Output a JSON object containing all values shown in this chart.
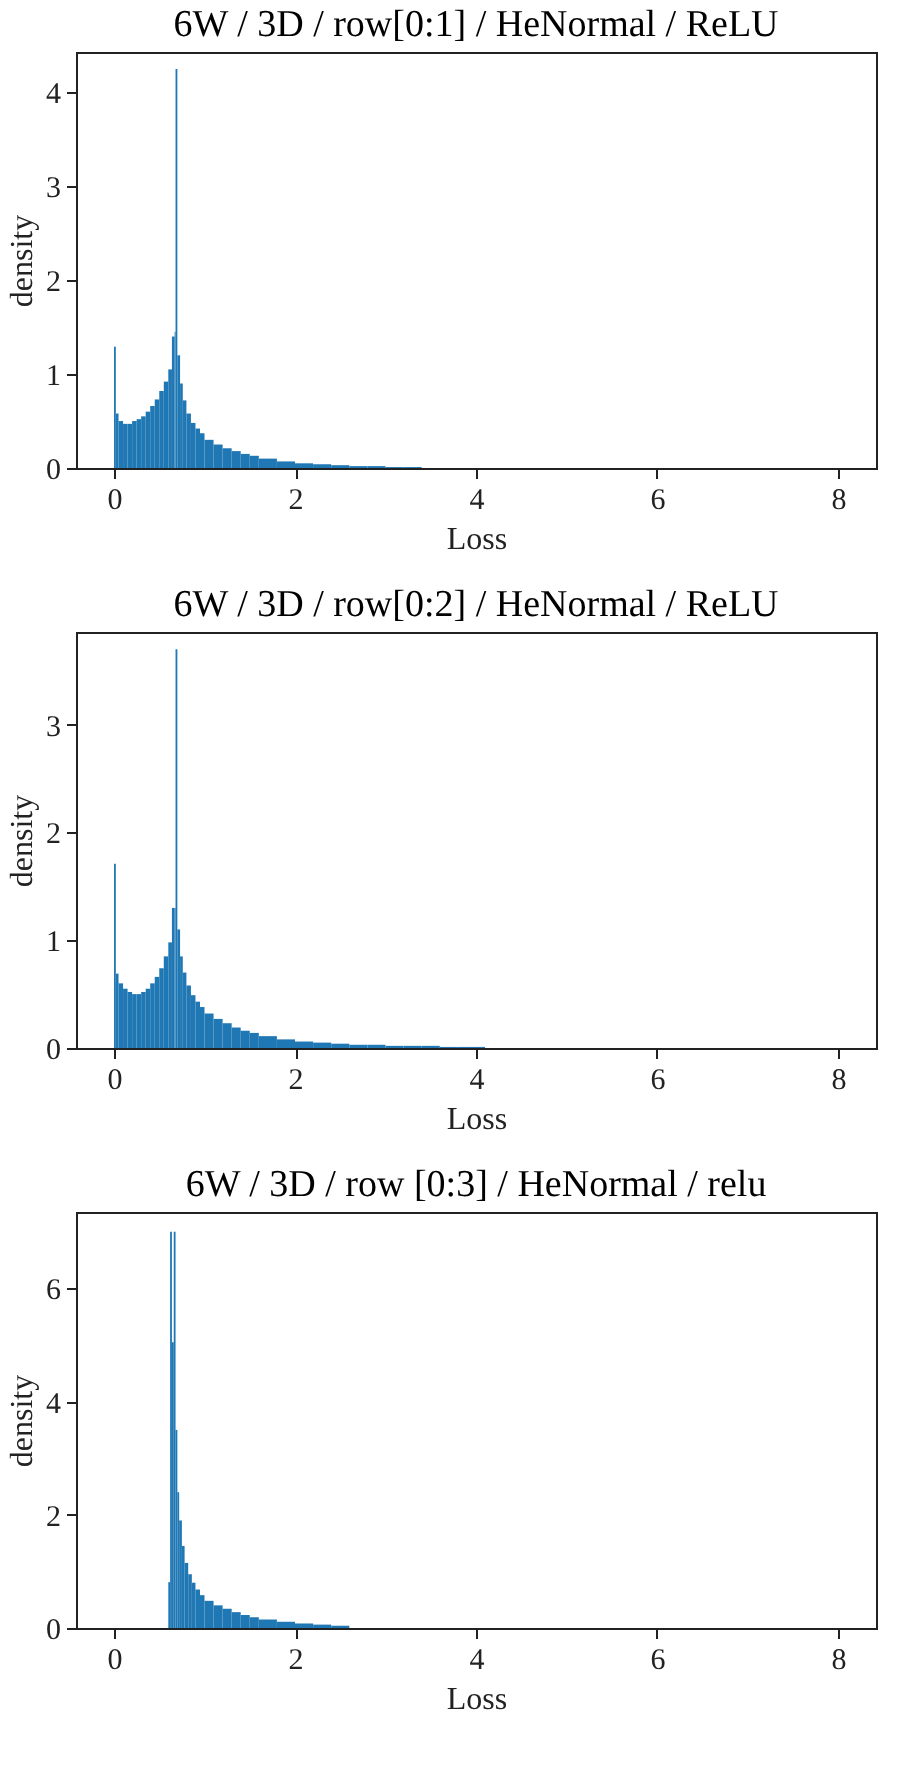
{
  "chart_data": [
    {
      "type": "histogram",
      "title": "6W / 3D / row[0:1] / HeNormal / ReLU",
      "xlabel": "Loss",
      "ylabel": "density",
      "color": "#1f77b4",
      "bins": [
        0,
        0.02,
        0.05,
        0.1,
        0.15,
        0.2,
        0.25,
        0.3,
        0.35,
        0.4,
        0.45,
        0.5,
        0.55,
        0.6,
        0.64,
        0.67,
        0.68,
        0.7,
        0.73,
        0.76,
        0.8,
        0.85,
        0.9,
        0.95,
        1.0,
        1.1,
        1.2,
        1.3,
        1.4,
        1.5,
        1.6,
        1.8,
        2.0,
        2.2,
        2.4,
        2.6,
        2.8,
        3.0,
        3.2,
        3.4
      ],
      "values": [
        1.29,
        0.58,
        0.5,
        0.47,
        0.47,
        0.5,
        0.52,
        0.55,
        0.6,
        0.66,
        0.73,
        0.82,
        0.92,
        1.05,
        1.4,
        1.45,
        4.25,
        1.2,
        0.9,
        0.72,
        0.58,
        0.48,
        0.42,
        0.37,
        0.3,
        0.25,
        0.21,
        0.18,
        0.15,
        0.13,
        0.1,
        0.07,
        0.05,
        0.04,
        0.03,
        0.02,
        0.02,
        0.01,
        0.01
      ],
      "xlim": [
        -0.42,
        8.42
      ],
      "ylim": [
        0,
        4.43
      ],
      "xticks": [
        0,
        2,
        4,
        6,
        8
      ],
      "yticks": [
        0,
        1,
        2,
        3,
        4
      ]
    },
    {
      "type": "histogram",
      "title": "6W / 3D / row[0:2] / HeNormal / ReLU",
      "xlabel": "Loss",
      "ylabel": "density",
      "color": "#1f77b4",
      "bins": [
        0,
        0.02,
        0.05,
        0.1,
        0.15,
        0.2,
        0.25,
        0.3,
        0.35,
        0.4,
        0.45,
        0.5,
        0.55,
        0.6,
        0.64,
        0.67,
        0.68,
        0.7,
        0.73,
        0.76,
        0.8,
        0.85,
        0.9,
        0.95,
        1.0,
        1.1,
        1.2,
        1.3,
        1.4,
        1.5,
        1.6,
        1.8,
        2.0,
        2.2,
        2.4,
        2.6,
        2.8,
        3.0,
        3.2,
        3.4,
        3.6,
        3.8,
        4.1
      ],
      "values": [
        1.71,
        0.69,
        0.6,
        0.55,
        0.52,
        0.5,
        0.5,
        0.52,
        0.55,
        0.6,
        0.66,
        0.74,
        0.85,
        0.98,
        1.3,
        1.3,
        3.7,
        1.1,
        0.85,
        0.7,
        0.58,
        0.49,
        0.43,
        0.38,
        0.32,
        0.27,
        0.23,
        0.19,
        0.16,
        0.14,
        0.11,
        0.08,
        0.06,
        0.05,
        0.04,
        0.03,
        0.03,
        0.02,
        0.02,
        0.02,
        0.01,
        0.01
      ],
      "xlim": [
        -0.42,
        8.42
      ],
      "ylim": [
        0,
        3.86
      ],
      "xticks": [
        0,
        2,
        4,
        6,
        8
      ],
      "yticks": [
        0,
        1,
        2,
        3
      ]
    },
    {
      "type": "histogram",
      "title": "6W / 3D / row [0:3] / HeNormal / relu",
      "xlabel": "Loss",
      "ylabel": "density",
      "color": "#1f77b4",
      "bins": [
        0.6,
        0.62,
        0.64,
        0.66,
        0.68,
        0.7,
        0.72,
        0.75,
        0.78,
        0.82,
        0.86,
        0.9,
        0.95,
        1.0,
        1.1,
        1.2,
        1.3,
        1.4,
        1.5,
        1.6,
        1.8,
        2.0,
        2.2,
        2.4,
        2.6
      ],
      "values": [
        0.81,
        7.0,
        5.05,
        7.0,
        3.5,
        2.4,
        1.9,
        1.45,
        1.15,
        0.95,
        0.8,
        0.68,
        0.58,
        0.48,
        0.4,
        0.34,
        0.28,
        0.23,
        0.19,
        0.15,
        0.11,
        0.08,
        0.06,
        0.04
      ],
      "xlim": [
        -0.42,
        8.42
      ],
      "ylim": [
        0,
        7.35
      ],
      "xticks": [
        0,
        2,
        4,
        6,
        8
      ],
      "yticks": [
        0,
        2,
        4,
        6
      ]
    }
  ]
}
